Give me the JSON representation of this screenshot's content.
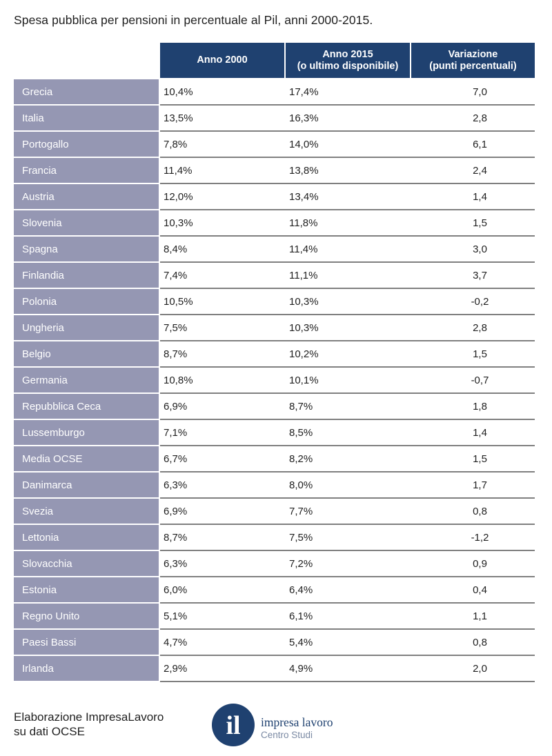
{
  "title": "Spesa pubblica per pensioni in percentuale al Pil, anni 2000-2015.",
  "chart_data": {
    "type": "table",
    "columns": [
      "Anno 2000",
      "Anno 2015\n(o ultimo disponibile)",
      "Variazione\n(punti percentuali)"
    ],
    "rows": [
      {
        "country": "Grecia",
        "y2000": "10,4%",
        "y2015": "17,4%",
        "change": "7,0"
      },
      {
        "country": "Italia",
        "y2000": "13,5%",
        "y2015": "16,3%",
        "change": "2,8"
      },
      {
        "country": "Portogallo",
        "y2000": "7,8%",
        "y2015": "14,0%",
        "change": "6,1"
      },
      {
        "country": "Francia",
        "y2000": "11,4%",
        "y2015": "13,8%",
        "change": "2,4"
      },
      {
        "country": "Austria",
        "y2000": "12,0%",
        "y2015": "13,4%",
        "change": "1,4"
      },
      {
        "country": "Slovenia",
        "y2000": "10,3%",
        "y2015": "11,8%",
        "change": "1,5"
      },
      {
        "country": "Spagna",
        "y2000": "8,4%",
        "y2015": "11,4%",
        "change": "3,0"
      },
      {
        "country": "Finlandia",
        "y2000": "7,4%",
        "y2015": "11,1%",
        "change": "3,7"
      },
      {
        "country": "Polonia",
        "y2000": "10,5%",
        "y2015": "10,3%",
        "change": "-0,2"
      },
      {
        "country": "Ungheria",
        "y2000": "7,5%",
        "y2015": "10,3%",
        "change": "2,8"
      },
      {
        "country": "Belgio",
        "y2000": "8,7%",
        "y2015": "10,2%",
        "change": "1,5"
      },
      {
        "country": "Germania",
        "y2000": "10,8%",
        "y2015": "10,1%",
        "change": "-0,7"
      },
      {
        "country": "Repubblica Ceca",
        "y2000": "6,9%",
        "y2015": "8,7%",
        "change": "1,8"
      },
      {
        "country": "Lussemburgo",
        "y2000": "7,1%",
        "y2015": "8,5%",
        "change": "1,4"
      },
      {
        "country": "Media OCSE",
        "y2000": "6,7%",
        "y2015": "8,2%",
        "change": "1,5"
      },
      {
        "country": "Danimarca",
        "y2000": "6,3%",
        "y2015": "8,0%",
        "change": "1,7"
      },
      {
        "country": "Svezia",
        "y2000": "6,9%",
        "y2015": "7,7%",
        "change": "0,8"
      },
      {
        "country": "Lettonia",
        "y2000": "8,7%",
        "y2015": "7,5%",
        "change": "-1,2"
      },
      {
        "country": "Slovacchia",
        "y2000": "6,3%",
        "y2015": "7,2%",
        "change": "0,9"
      },
      {
        "country": "Estonia",
        "y2000": "6,0%",
        "y2015": "6,4%",
        "change": "0,4"
      },
      {
        "country": "Regno Unito",
        "y2000": "5,1%",
        "y2015": "6,1%",
        "change": "1,1"
      },
      {
        "country": "Paesi Bassi",
        "y2000": "4,7%",
        "y2015": "5,4%",
        "change": "0,8"
      },
      {
        "country": "Irlanda",
        "y2000": "2,9%",
        "y2015": "4,9%",
        "change": "2,0"
      }
    ]
  },
  "footer": {
    "source": "Elaborazione ImpresaLavoro\nsu dati OCSE"
  },
  "logo": {
    "mark": "il",
    "brand": "impresa lavoro",
    "sub": "Centro Studi",
    "icon": "impresa-lavoro-logo-icon"
  },
  "colors": {
    "header_bg": "#1f4170",
    "country_bg": "#9597b3",
    "row_line": "#7f7f7f"
  }
}
